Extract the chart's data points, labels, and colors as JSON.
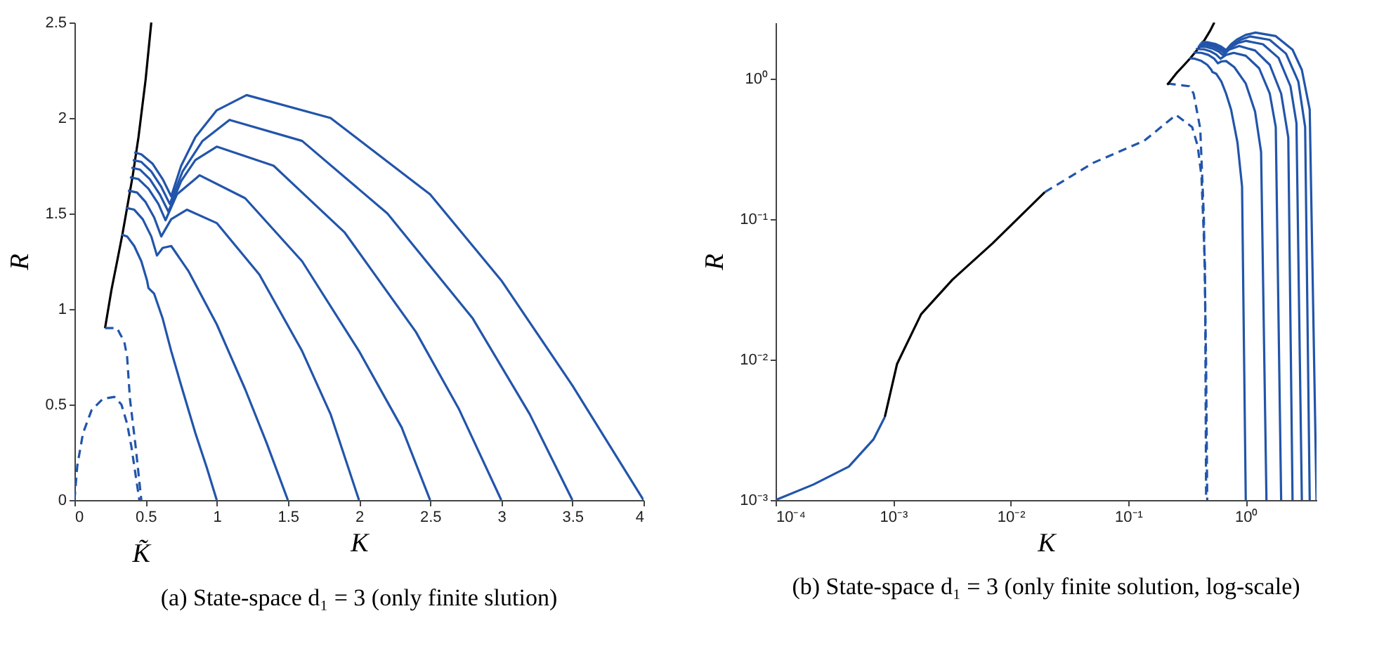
{
  "chart_data": [
    {
      "type": "line",
      "title": "(a) State-space d₁ = 3 (only finite slution)",
      "xlabel": "K",
      "ylabel": "R",
      "xlim": [
        0,
        4
      ],
      "ylim": [
        0,
        2.5
      ],
      "xticks": [
        0,
        0.5,
        1,
        1.5,
        2,
        2.5,
        3,
        3.5,
        4
      ],
      "yticks": [
        0,
        0.5,
        1,
        1.5,
        2,
        2.5
      ],
      "annotations": [
        {
          "text": "K̃",
          "x": 0.47,
          "y": 0
        }
      ],
      "series": [
        {
          "color": "#000000",
          "line_style": "solid",
          "x": [
            0.215,
            0.26,
            0.3,
            0.338,
            0.37,
            0.41,
            0.45,
            0.5,
            0.54
          ],
          "values": [
            0.9,
            1.1,
            1.25,
            1.395,
            1.53,
            1.7,
            1.9,
            2.2,
            2.5
          ]
        },
        {
          "color": "#2255aa",
          "line_style": "dashed",
          "x": [
            0,
            0.02,
            0.06,
            0.12,
            0.2,
            0.28,
            0.33,
            0.37,
            0.4,
            0.43,
            0.456
          ],
          "values": [
            0,
            0.18,
            0.35,
            0.47,
            0.53,
            0.54,
            0.5,
            0.4,
            0.28,
            0.13,
            0
          ]
        },
        {
          "color": "#2255aa",
          "line_style": "dashed",
          "x": [
            0.215,
            0.3,
            0.32,
            0.35,
            0.37,
            0.39,
            0.43,
            0.47
          ],
          "values": [
            0.9,
            0.9,
            0.87,
            0.83,
            0.75,
            0.53,
            0.28,
            0
          ]
        },
        {
          "color": "#2255aa",
          "line_style": "solid",
          "x": [
            0.332,
            0.37,
            0.42,
            0.47,
            0.51,
            0.52,
            0.56,
            0.62,
            0.68,
            0.75,
            0.85,
            0.93,
            1
          ],
          "values": [
            1.39,
            1.38,
            1.33,
            1.25,
            1.15,
            1.11,
            1.08,
            0.95,
            0.78,
            0.6,
            0.35,
            0.17,
            0
          ]
        },
        {
          "color": "#2255aa",
          "line_style": "solid",
          "x": [
            0.36,
            0.42,
            0.48,
            0.54,
            0.58,
            0.62,
            0.68,
            0.8,
            1.0,
            1.2,
            1.35,
            1.5
          ],
          "values": [
            1.53,
            1.52,
            1.47,
            1.38,
            1.28,
            1.32,
            1.33,
            1.2,
            0.92,
            0.58,
            0.3,
            0
          ]
        },
        {
          "color": "#2255aa",
          "line_style": "solid",
          "x": [
            0.376,
            0.44,
            0.5,
            0.56,
            0.61,
            0.68,
            0.79,
            1.0,
            1.3,
            1.6,
            1.8,
            2
          ],
          "values": [
            1.62,
            1.61,
            1.56,
            1.48,
            1.38,
            1.47,
            1.52,
            1.45,
            1.18,
            0.78,
            0.45,
            0
          ]
        },
        {
          "color": "#2255aa",
          "line_style": "solid",
          "x": [
            0.39,
            0.45,
            0.52,
            0.59,
            0.64,
            0.72,
            0.88,
            1.2,
            1.6,
            2.0,
            2.3,
            2.5
          ],
          "values": [
            1.69,
            1.68,
            1.63,
            1.55,
            1.465,
            1.6,
            1.7,
            1.58,
            1.25,
            0.78,
            0.38,
            0
          ]
        },
        {
          "color": "#2255aa",
          "line_style": "solid",
          "x": [
            0.4,
            0.46,
            0.53,
            0.6,
            0.66,
            0.75,
            0.85,
            1.0,
            1.4,
            1.9,
            2.4,
            2.7,
            3
          ],
          "values": [
            1.74,
            1.73,
            1.68,
            1.6,
            1.51,
            1.67,
            1.78,
            1.85,
            1.75,
            1.4,
            0.88,
            0.48,
            0
          ]
        },
        {
          "color": "#2255aa",
          "line_style": "solid",
          "x": [
            0.41,
            0.47,
            0.54,
            0.61,
            0.67,
            0.76,
            0.9,
            1.09,
            1.6,
            2.2,
            2.8,
            3.2,
            3.5
          ],
          "values": [
            1.78,
            1.77,
            1.72,
            1.64,
            1.55,
            1.72,
            1.88,
            1.99,
            1.88,
            1.5,
            0.95,
            0.45,
            0
          ]
        },
        {
          "color": "#2255aa",
          "line_style": "solid",
          "x": [
            0.42,
            0.47,
            0.55,
            0.62,
            0.68,
            0.75,
            0.85,
            1.0,
            1.21,
            1.8,
            2.5,
            3.0,
            3.5,
            4
          ],
          "values": [
            1.82,
            1.81,
            1.76,
            1.68,
            1.59,
            1.75,
            1.9,
            2.04,
            2.12,
            2.0,
            1.6,
            1.15,
            0.6,
            0
          ]
        }
      ]
    },
    {
      "type": "line",
      "title": "(b) State-space d₁ = 3 (only finite solution, log-scale)",
      "xlabel": "K",
      "ylabel": "R",
      "log": "xy",
      "xlim": [
        0.0001,
        4
      ],
      "ylim": [
        0.001,
        2.5
      ],
      "xticks": [
        {
          "value": 0.0001,
          "label": "10⁻⁴"
        },
        {
          "value": 0.001,
          "label": "10⁻³"
        },
        {
          "value": 0.01,
          "label": "10⁻²"
        },
        {
          "value": 0.1,
          "label": "10⁻¹"
        },
        {
          "value": 1,
          "label": "10⁰"
        }
      ],
      "yticks": [
        {
          "value": 0.001,
          "label": "10⁻³"
        },
        {
          "value": 0.01,
          "label": "10⁻²"
        },
        {
          "value": 0.1,
          "label": "10⁻¹"
        },
        {
          "value": 1,
          "label": "10⁰"
        }
      ],
      "series": [
        {
          "color": "#2255aa",
          "line_style": "solid",
          "x": [
            0.0001,
            0.00021,
            0.00042,
            0.00068,
            0.00085
          ],
          "values": [
            0.001,
            0.00129,
            0.00173,
            0.0027,
            0.0039
          ]
        },
        {
          "color": "#000000",
          "line_style": "solid",
          "x": [
            0.00085,
            0.00108,
            0.00173,
            0.0032,
            0.007,
            0.0195
          ],
          "values": [
            0.0039,
            0.0093,
            0.021,
            0.037,
            0.067,
            0.155
          ]
        },
        {
          "color": "#2255aa",
          "line_style": "dashed",
          "x": [
            0.0195,
            0.05,
            0.137,
            0.255,
            0.35,
            0.39,
            0.42,
            0.45,
            0.46
          ],
          "values": [
            0.155,
            0.25,
            0.36,
            0.55,
            0.45,
            0.33,
            0.2,
            0.046,
            0.001
          ]
        },
        {
          "color": "#2255aa",
          "line_style": "dashed",
          "x": [
            0.215,
            0.33,
            0.36,
            0.41,
            0.44,
            0.46,
            0.47
          ],
          "values": [
            0.92,
            0.88,
            0.78,
            0.44,
            0.103,
            0.0093,
            0.001
          ]
        },
        {
          "color": "#000000",
          "line_style": "solid",
          "x": [
            0.215,
            0.26,
            0.3,
            0.338,
            0.37,
            0.41,
            0.45,
            0.5,
            0.54
          ],
          "values": [
            0.9,
            1.1,
            1.25,
            1.395,
            1.53,
            1.7,
            1.9,
            2.2,
            2.5
          ]
        },
        {
          "color": "#2255aa",
          "line_style": "solid",
          "x": [
            0.332,
            0.37,
            0.42,
            0.47,
            0.51,
            0.52,
            0.56,
            0.62,
            0.68,
            0.75,
            0.85,
            0.93,
            1
          ],
          "values": [
            1.39,
            1.38,
            1.33,
            1.25,
            1.15,
            1.11,
            1.08,
            0.95,
            0.78,
            0.6,
            0.35,
            0.17,
            0.001
          ]
        },
        {
          "color": "#2255aa",
          "line_style": "solid",
          "x": [
            0.36,
            0.42,
            0.48,
            0.54,
            0.58,
            0.62,
            0.68,
            0.8,
            1.0,
            1.2,
            1.35,
            1.5
          ],
          "values": [
            1.53,
            1.52,
            1.47,
            1.38,
            1.28,
            1.32,
            1.33,
            1.2,
            0.92,
            0.58,
            0.3,
            0.001
          ]
        },
        {
          "color": "#2255aa",
          "line_style": "solid",
          "x": [
            0.376,
            0.44,
            0.5,
            0.56,
            0.61,
            0.68,
            0.79,
            1.0,
            1.3,
            1.6,
            1.8,
            2
          ],
          "values": [
            1.62,
            1.61,
            1.56,
            1.48,
            1.38,
            1.47,
            1.52,
            1.45,
            1.18,
            0.78,
            0.45,
            0.001
          ]
        },
        {
          "color": "#2255aa",
          "line_style": "solid",
          "x": [
            0.39,
            0.45,
            0.52,
            0.59,
            0.64,
            0.72,
            0.88,
            1.2,
            1.6,
            2.0,
            2.3,
            2.5
          ],
          "values": [
            1.69,
            1.68,
            1.63,
            1.55,
            1.465,
            1.6,
            1.7,
            1.58,
            1.25,
            0.78,
            0.38,
            0.001
          ]
        },
        {
          "color": "#2255aa",
          "line_style": "solid",
          "x": [
            0.4,
            0.46,
            0.53,
            0.6,
            0.66,
            0.75,
            0.85,
            1.0,
            1.4,
            1.9,
            2.4,
            2.7,
            3
          ],
          "values": [
            1.74,
            1.73,
            1.68,
            1.6,
            1.51,
            1.67,
            1.78,
            1.85,
            1.75,
            1.4,
            0.88,
            0.48,
            0.001
          ]
        },
        {
          "color": "#2255aa",
          "line_style": "solid",
          "x": [
            0.41,
            0.47,
            0.54,
            0.61,
            0.67,
            0.76,
            0.9,
            1.09,
            1.6,
            2.2,
            2.8,
            3.2,
            3.5
          ],
          "values": [
            1.78,
            1.77,
            1.72,
            1.64,
            1.55,
            1.72,
            1.88,
            1.99,
            1.88,
            1.5,
            0.95,
            0.45,
            0.001
          ]
        },
        {
          "color": "#2255aa",
          "line_style": "solid",
          "x": [
            0.42,
            0.47,
            0.55,
            0.62,
            0.68,
            0.75,
            0.85,
            1.0,
            1.21,
            1.8,
            2.5,
            3.0,
            3.5,
            4
          ],
          "values": [
            1.82,
            1.81,
            1.76,
            1.68,
            1.59,
            1.75,
            1.9,
            2.04,
            2.12,
            2.0,
            1.6,
            1.15,
            0.6,
            0.001
          ]
        }
      ]
    }
  ]
}
